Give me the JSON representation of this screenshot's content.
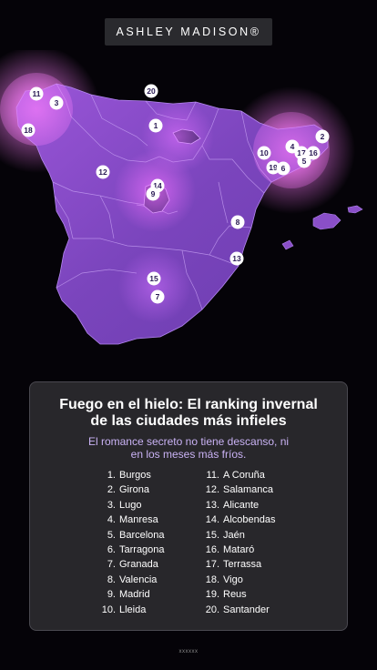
{
  "brand": {
    "logo_text": "ASHLEY MADISON®"
  },
  "map": {
    "region": "Spain",
    "pins": [
      {
        "label": "20"
      },
      {
        "label": "11"
      },
      {
        "label": "3"
      },
      {
        "label": "18"
      },
      {
        "label": "1"
      },
      {
        "label": "2"
      },
      {
        "label": "4"
      },
      {
        "label": "17"
      },
      {
        "label": "16"
      },
      {
        "label": "5"
      },
      {
        "label": "10"
      },
      {
        "label": "19"
      },
      {
        "label": "6"
      },
      {
        "label": "12"
      },
      {
        "label": "14"
      },
      {
        "label": "9"
      },
      {
        "label": "8"
      },
      {
        "label": "13"
      },
      {
        "label": "15"
      },
      {
        "label": "7"
      }
    ]
  },
  "card": {
    "title_line1": "Fuego en el hielo: El ranking invernal",
    "title_line2": "de las ciudades más infieles",
    "subtitle_line1": "El romance secreto no tiene descanso, ni",
    "subtitle_line2": "en los meses más fríos.",
    "ranking": [
      {
        "num": "1.",
        "city": "Burgos"
      },
      {
        "num": "2.",
        "city": "Girona"
      },
      {
        "num": "3.",
        "city": "Lugo"
      },
      {
        "num": "4.",
        "city": "Manresa"
      },
      {
        "num": "5.",
        "city": "Barcelona"
      },
      {
        "num": "6.",
        "city": "Tarragona"
      },
      {
        "num": "7.",
        "city": "Granada"
      },
      {
        "num": "8.",
        "city": "Valencia"
      },
      {
        "num": "9.",
        "city": "Madrid"
      },
      {
        "num": "10.",
        "city": "Lleida"
      },
      {
        "num": "11.",
        "city": "A Coruña"
      },
      {
        "num": "12.",
        "city": "Salamanca"
      },
      {
        "num": "13.",
        "city": "Alicante"
      },
      {
        "num": "14.",
        "city": "Alcobendas"
      },
      {
        "num": "15.",
        "city": "Jaén"
      },
      {
        "num": "16.",
        "city": "Mataró"
      },
      {
        "num": "17.",
        "city": "Terrassa"
      },
      {
        "num": "18.",
        "city": "Vigo"
      },
      {
        "num": "19.",
        "city": "Reus"
      },
      {
        "num": "20.",
        "city": "Santander"
      }
    ]
  },
  "footer": {
    "text": "xxxxxx"
  },
  "colors": {
    "background": "#050308",
    "card": "#28272b",
    "accent": "#c9b2f4",
    "map_fill": "#8a4fc8",
    "glow": "#d060ff"
  }
}
